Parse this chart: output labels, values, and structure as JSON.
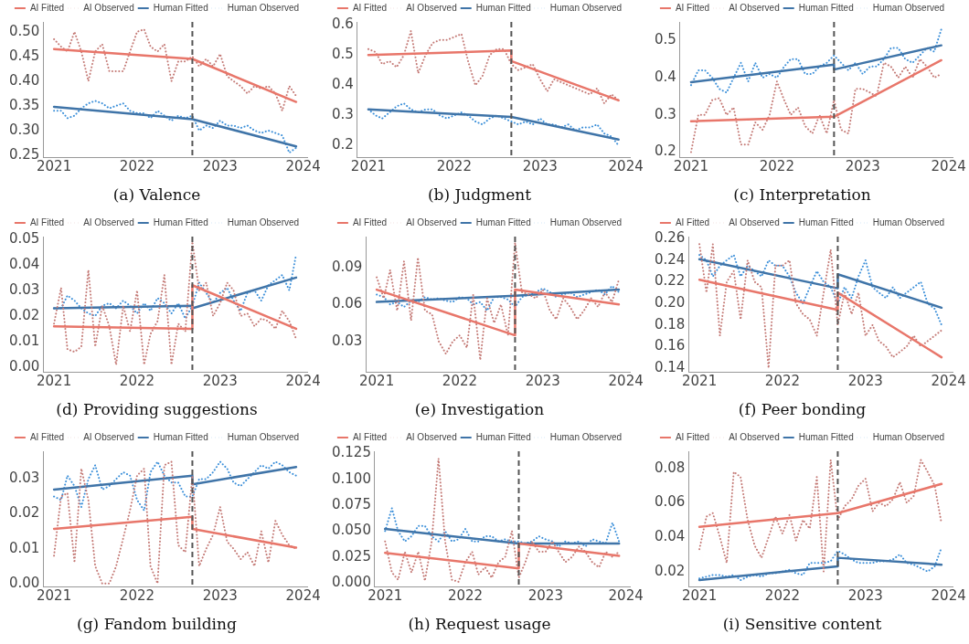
{
  "chart_data": [
    {
      "type": "line",
      "title": "(a) Valence",
      "legend": "top",
      "grid": false,
      "marker": "none",
      "xlim": [
        "2020-11-15",
        "2024-01-20"
      ],
      "xticks": [
        "2021",
        "2022",
        "2023",
        "2024"
      ],
      "ylim": [
        0.245,
        0.52
      ],
      "yticks": [
        {
          "value": 0.25,
          "label": "0.25"
        },
        {
          "value": 0.3,
          "label": "0.30"
        },
        {
          "value": 0.35,
          "label": "0.35"
        },
        {
          "value": 0.4,
          "label": "0.40"
        },
        {
          "value": 0.45,
          "label": "0.45"
        },
        {
          "value": 0.5,
          "label": "0.50"
        }
      ],
      "ref_lines": [
        {
          "axis": "x",
          "value": "2022-09",
          "color": "#555555",
          "line_style": "dashed"
        }
      ],
      "x": [
        "2021-01",
        "2021-02",
        "2021-03",
        "2021-04",
        "2021-05",
        "2021-06",
        "2021-07",
        "2021-08",
        "2021-09",
        "2021-10",
        "2021-11",
        "2021-12",
        "2022-01",
        "2022-02",
        "2022-03",
        "2022-04",
        "2022-05",
        "2022-06",
        "2022-07",
        "2022-08",
        "2022-09",
        "2022-10",
        "2022-11",
        "2022-12",
        "2023-01",
        "2023-02",
        "2023-03",
        "2023-04",
        "2023-05",
        "2023-06",
        "2023-07",
        "2023-08",
        "2023-09",
        "2023-10",
        "2023-11",
        "2023-12"
      ],
      "series": [
        {
          "name": "AI Fitted",
          "color": "#e8766a",
          "line_style": "solid",
          "x": [
            "2021-01",
            "2022-09",
            "2022-09",
            "2023-12"
          ],
          "values": [
            0.465,
            0.445,
            0.445,
            0.358
          ]
        },
        {
          "name": "AI Observed",
          "color": "#c47a76",
          "line_style": "dotted",
          "values": [
            0.485,
            0.47,
            0.46,
            0.5,
            0.46,
            0.4,
            0.46,
            0.475,
            0.42,
            0.42,
            0.42,
            0.46,
            0.5,
            0.505,
            0.47,
            0.46,
            0.475,
            0.4,
            0.44,
            0.44,
            0.45,
            0.43,
            0.445,
            0.43,
            0.455,
            0.41,
            0.4,
            0.39,
            0.375,
            0.39,
            0.385,
            0.39,
            0.375,
            0.34,
            0.39,
            0.37
          ]
        },
        {
          "name": "Human Fitted",
          "color": "#3f74a8",
          "line_style": "solid",
          "x": [
            "2021-01",
            "2022-09",
            "2022-09",
            "2023-12"
          ],
          "values": [
            0.348,
            0.323,
            0.323,
            0.268
          ]
        },
        {
          "name": "Human Observed",
          "color": "#3b8fd9",
          "line_style": "dotted",
          "values": [
            0.34,
            0.34,
            0.325,
            0.33,
            0.345,
            0.355,
            0.36,
            0.355,
            0.345,
            0.35,
            0.355,
            0.34,
            0.335,
            0.335,
            0.325,
            0.34,
            0.33,
            0.32,
            0.33,
            0.325,
            0.33,
            0.3,
            0.31,
            0.305,
            0.32,
            0.31,
            0.31,
            0.305,
            0.31,
            0.3,
            0.295,
            0.3,
            0.295,
            0.29,
            0.255,
            0.265
          ]
        }
      ]
    },
    {
      "type": "line",
      "title": "(b) Judgment",
      "legend": "top",
      "grid": false,
      "marker": "none",
      "xlim": [
        "2020-11-15",
        "2024-01-20"
      ],
      "xticks": [
        "2021",
        "2022",
        "2023",
        "2024"
      ],
      "ylim": [
        0.16,
        0.61
      ],
      "yticks": [
        {
          "value": 0.2,
          "label": "0.2"
        },
        {
          "value": 0.3,
          "label": "0.3"
        },
        {
          "value": 0.4,
          "label": "0.4"
        },
        {
          "value": 0.5,
          "label": "0.5"
        },
        {
          "value": 0.6,
          "label": "0.6"
        }
      ],
      "ref_lines": [
        {
          "axis": "x",
          "value": "2022-09",
          "color": "#555555",
          "line_style": "dashed"
        }
      ],
      "x": [
        "2021-01",
        "2021-02",
        "2021-03",
        "2021-04",
        "2021-05",
        "2021-06",
        "2021-07",
        "2021-08",
        "2021-09",
        "2021-10",
        "2021-11",
        "2021-12",
        "2022-01",
        "2022-02",
        "2022-03",
        "2022-04",
        "2022-05",
        "2022-06",
        "2022-07",
        "2022-08",
        "2022-09",
        "2022-10",
        "2022-11",
        "2022-12",
        "2023-01",
        "2023-02",
        "2023-03",
        "2023-04",
        "2023-05",
        "2023-06",
        "2023-07",
        "2023-08",
        "2023-09",
        "2023-10",
        "2023-11",
        "2023-12"
      ],
      "series": [
        {
          "name": "AI Fitted",
          "color": "#e8766a",
          "line_style": "solid",
          "x": [
            "2021-01",
            "2022-09",
            "2022-09",
            "2023-12"
          ],
          "values": [
            0.5,
            0.515,
            0.48,
            0.35
          ]
        },
        {
          "name": "AI Observed",
          "color": "#c47a76",
          "line_style": "dotted",
          "values": [
            0.52,
            0.51,
            0.47,
            0.48,
            0.46,
            0.5,
            0.58,
            0.44,
            0.5,
            0.54,
            0.55,
            0.55,
            0.56,
            0.57,
            0.48,
            0.4,
            0.43,
            0.5,
            0.52,
            0.52,
            0.47,
            0.45,
            0.46,
            0.47,
            0.42,
            0.38,
            0.42,
            0.41,
            0.4,
            0.39,
            0.38,
            0.37,
            0.39,
            0.34,
            0.37,
            0.35
          ]
        },
        {
          "name": "Human Fitted",
          "color": "#3f74a8",
          "line_style": "solid",
          "x": [
            "2021-01",
            "2022-09",
            "2022-09",
            "2023-12"
          ],
          "values": [
            0.32,
            0.295,
            0.295,
            0.22
          ]
        },
        {
          "name": "Human Observed",
          "color": "#3b8fd9",
          "line_style": "dotted",
          "values": [
            0.32,
            0.3,
            0.29,
            0.31,
            0.33,
            0.34,
            0.32,
            0.31,
            0.32,
            0.32,
            0.3,
            0.29,
            0.3,
            0.31,
            0.3,
            0.28,
            0.27,
            0.29,
            0.3,
            0.29,
            0.28,
            0.27,
            0.28,
            0.27,
            0.29,
            0.27,
            0.27,
            0.26,
            0.27,
            0.25,
            0.26,
            0.26,
            0.27,
            0.24,
            0.23,
            0.2
          ]
        }
      ]
    },
    {
      "type": "line",
      "title": "(c) Interpretation",
      "legend": "top",
      "grid": false,
      "marker": "none",
      "xlim": [
        "2020-11-15",
        "2024-01-20"
      ],
      "xticks": [
        "2021",
        "2022",
        "2023",
        "2024"
      ],
      "ylim": [
        0.185,
        0.55
      ],
      "yticks": [
        {
          "value": 0.2,
          "label": "0.2"
        },
        {
          "value": 0.3,
          "label": "0.3"
        },
        {
          "value": 0.4,
          "label": "0.4"
        },
        {
          "value": 0.5,
          "label": "0.5"
        }
      ],
      "ref_lines": [
        {
          "axis": "x",
          "value": "2022-09",
          "color": "#555555",
          "line_style": "dashed"
        }
      ],
      "x": [
        "2021-01",
        "2021-02",
        "2021-03",
        "2021-04",
        "2021-05",
        "2021-06",
        "2021-07",
        "2021-08",
        "2021-09",
        "2021-10",
        "2021-11",
        "2021-12",
        "2022-01",
        "2022-02",
        "2022-03",
        "2022-04",
        "2022-05",
        "2022-06",
        "2022-07",
        "2022-08",
        "2022-09",
        "2022-10",
        "2022-11",
        "2022-12",
        "2023-01",
        "2023-02",
        "2023-03",
        "2023-04",
        "2023-05",
        "2023-06",
        "2023-07",
        "2023-08",
        "2023-09",
        "2023-10",
        "2023-11",
        "2023-12"
      ],
      "series": [
        {
          "name": "AI Fitted",
          "color": "#e8766a",
          "line_style": "solid",
          "x": [
            "2021-01",
            "2022-09",
            "2022-09",
            "2023-12"
          ],
          "values": [
            0.283,
            0.295,
            0.295,
            0.447
          ]
        },
        {
          "name": "AI Observed",
          "color": "#c47a76",
          "line_style": "dotted",
          "values": [
            0.2,
            0.3,
            0.3,
            0.34,
            0.345,
            0.3,
            0.32,
            0.22,
            0.22,
            0.28,
            0.26,
            0.3,
            0.39,
            0.34,
            0.3,
            0.32,
            0.27,
            0.25,
            0.3,
            0.25,
            0.34,
            0.26,
            0.25,
            0.37,
            0.37,
            0.36,
            0.35,
            0.44,
            0.43,
            0.4,
            0.43,
            0.4,
            0.45,
            0.43,
            0.4,
            0.41
          ]
        },
        {
          "name": "Human Fitted",
          "color": "#3f74a8",
          "line_style": "solid",
          "x": [
            "2021-01",
            "2022-09",
            "2022-09",
            "2023-12"
          ],
          "values": [
            0.388,
            0.435,
            0.422,
            0.487
          ]
        },
        {
          "name": "Human Observed",
          "color": "#3b8fd9",
          "line_style": "dotted",
          "values": [
            0.38,
            0.42,
            0.42,
            0.4,
            0.37,
            0.36,
            0.4,
            0.44,
            0.39,
            0.44,
            0.4,
            0.41,
            0.4,
            0.43,
            0.45,
            0.45,
            0.41,
            0.41,
            0.43,
            0.44,
            0.46,
            0.44,
            0.42,
            0.44,
            0.41,
            0.43,
            0.43,
            0.45,
            0.48,
            0.48,
            0.45,
            0.44,
            0.46,
            0.48,
            0.47,
            0.53
          ]
        }
      ]
    },
    {
      "type": "line",
      "title": "(d) Providing suggestions",
      "legend": "top",
      "grid": false,
      "marker": "none",
      "xlim": [
        "2020-11-15",
        "2024-01-20"
      ],
      "xticks": [
        "2021",
        "2022",
        "2023",
        "2024"
      ],
      "ylim": [
        -0.002,
        0.051
      ],
      "yticks": [
        {
          "value": 0,
          "label": "0.00"
        },
        {
          "value": 0.01,
          "label": "0.01"
        },
        {
          "value": 0.02,
          "label": "0.02"
        },
        {
          "value": 0.03,
          "label": "0.03"
        },
        {
          "value": 0.04,
          "label": "0.04"
        },
        {
          "value": 0.05,
          "label": "0.05"
        }
      ],
      "ref_lines": [
        {
          "axis": "x",
          "value": "2022-09",
          "color": "#555555",
          "line_style": "dashed"
        }
      ],
      "x": [
        "2021-01",
        "2021-02",
        "2021-03",
        "2021-04",
        "2021-05",
        "2021-06",
        "2021-07",
        "2021-08",
        "2021-09",
        "2021-10",
        "2021-11",
        "2021-12",
        "2022-01",
        "2022-02",
        "2022-03",
        "2022-04",
        "2022-05",
        "2022-06",
        "2022-07",
        "2022-08",
        "2022-09",
        "2022-10",
        "2022-11",
        "2022-12",
        "2023-01",
        "2023-02",
        "2023-03",
        "2023-04",
        "2023-05",
        "2023-06",
        "2023-07",
        "2023-08",
        "2023-09",
        "2023-10",
        "2023-11",
        "2023-12"
      ],
      "series": [
        {
          "name": "AI Fitted",
          "color": "#e8766a",
          "line_style": "solid",
          "x": [
            "2021-01",
            "2022-09",
            "2022-09",
            "2023-12"
          ],
          "values": [
            0.016,
            0.015,
            0.032,
            0.015
          ]
        },
        {
          "name": "AI Observed",
          "color": "#c47a76",
          "line_style": "dotted",
          "values": [
            0.017,
            0.031,
            0.007,
            0.006,
            0.008,
            0.038,
            0.008,
            0.024,
            0.016,
            0.001,
            0.024,
            0.014,
            0.03,
            0.001,
            0.013,
            0.018,
            0.036,
            0.001,
            0.017,
            0.014,
            0.049,
            0.03,
            0.033,
            0.02,
            0.025,
            0.033,
            0.03,
            0.02,
            0.021,
            0.016,
            0.019,
            0.018,
            0.015,
            0.022,
            0.018,
            0.011
          ]
        },
        {
          "name": "Human Fitted",
          "color": "#3f74a8",
          "line_style": "solid",
          "x": [
            "2021-01",
            "2022-09",
            "2022-09",
            "2023-12"
          ],
          "values": [
            0.023,
            0.024,
            0.023,
            0.035
          ]
        },
        {
          "name": "Human Observed",
          "color": "#3b8fd9",
          "line_style": "dotted",
          "values": [
            0.023,
            0.023,
            0.028,
            0.026,
            0.023,
            0.021,
            0.02,
            0.024,
            0.025,
            0.023,
            0.026,
            0.024,
            0.021,
            0.025,
            0.022,
            0.027,
            0.025,
            0.021,
            0.025,
            0.019,
            0.024,
            0.033,
            0.029,
            0.025,
            0.029,
            0.031,
            0.026,
            0.022,
            0.029,
            0.03,
            0.026,
            0.032,
            0.034,
            0.036,
            0.03,
            0.044
          ]
        }
      ]
    },
    {
      "type": "line",
      "title": "(e) Investigation",
      "legend": "top",
      "grid": false,
      "marker": "none",
      "xlim": [
        "2020-11-15",
        "2024-01-20"
      ],
      "xticks": [
        "2021",
        "2022",
        "2023",
        "2024"
      ],
      "ylim": [
        0.005,
        0.115
      ],
      "yticks": [
        {
          "value": 0.03,
          "label": "0.03"
        },
        {
          "value": 0.06,
          "label": "0.06"
        },
        {
          "value": 0.09,
          "label": "0.09"
        }
      ],
      "ref_lines": [
        {
          "axis": "x",
          "value": "2022-09",
          "color": "#555555",
          "line_style": "dashed"
        }
      ],
      "x": [
        "2021-01",
        "2021-02",
        "2021-03",
        "2021-04",
        "2021-05",
        "2021-06",
        "2021-07",
        "2021-08",
        "2021-09",
        "2021-10",
        "2021-11",
        "2021-12",
        "2022-01",
        "2022-02",
        "2022-03",
        "2022-04",
        "2022-05",
        "2022-06",
        "2022-07",
        "2022-08",
        "2022-09",
        "2022-10",
        "2022-11",
        "2022-12",
        "2023-01",
        "2023-02",
        "2023-03",
        "2023-04",
        "2023-05",
        "2023-06",
        "2023-07",
        "2023-08",
        "2023-09",
        "2023-10",
        "2023-11",
        "2023-12"
      ],
      "series": [
        {
          "name": "AI Fitted",
          "color": "#e8766a",
          "line_style": "solid",
          "x": [
            "2021-01",
            "2022-09",
            "2022-09",
            "2023-12"
          ],
          "values": [
            0.072,
            0.035,
            0.072,
            0.06
          ]
        },
        {
          "name": "AI Observed",
          "color": "#c47a76",
          "line_style": "dotted",
          "values": [
            0.082,
            0.065,
            0.088,
            0.055,
            0.095,
            0.047,
            0.098,
            0.055,
            0.052,
            0.03,
            0.02,
            0.03,
            0.035,
            0.025,
            0.068,
            0.015,
            0.065,
            0.045,
            0.06,
            0.035,
            0.11,
            0.07,
            0.068,
            0.065,
            0.072,
            0.055,
            0.048,
            0.065,
            0.058,
            0.048,
            0.055,
            0.065,
            0.058,
            0.07,
            0.062,
            0.08
          ]
        },
        {
          "name": "Human Fitted",
          "color": "#3f74a8",
          "line_style": "solid",
          "x": [
            "2021-01",
            "2022-09",
            "2022-09",
            "2023-12"
          ],
          "values": [
            0.062,
            0.067,
            0.067,
            0.072
          ]
        },
        {
          "name": "Human Observed",
          "color": "#3b8fd9",
          "line_style": "dotted",
          "values": [
            0.068,
            0.066,
            0.06,
            0.062,
            0.058,
            0.063,
            0.062,
            0.066,
            0.064,
            0.065,
            0.063,
            0.062,
            0.066,
            0.065,
            0.06,
            0.062,
            0.055,
            0.066,
            0.066,
            0.064,
            0.058,
            0.066,
            0.068,
            0.07,
            0.073,
            0.07,
            0.066,
            0.068,
            0.07,
            0.066,
            0.068,
            0.07,
            0.072,
            0.068,
            0.075,
            0.07
          ]
        }
      ]
    },
    {
      "type": "line",
      "title": "(f) Peer bonding",
      "legend": "top",
      "grid": false,
      "marker": "none",
      "xlim": [
        "2020-11-15",
        "2024-01-20"
      ],
      "xticks": [
        "2021",
        "2022",
        "2023",
        "2024"
      ],
      "ylim": [
        0.136,
        0.262
      ],
      "yticks": [
        {
          "value": 0.14,
          "label": "0.14"
        },
        {
          "value": 0.16,
          "label": "0.16"
        },
        {
          "value": 0.18,
          "label": "0.18"
        },
        {
          "value": 0.2,
          "label": "0.20"
        },
        {
          "value": 0.22,
          "label": "0.22"
        },
        {
          "value": 0.24,
          "label": "0.24"
        },
        {
          "value": 0.26,
          "label": "0.26"
        }
      ],
      "ref_lines": [
        {
          "axis": "x",
          "value": "2022-09",
          "color": "#555555",
          "line_style": "dashed"
        }
      ],
      "x": [
        "2021-01",
        "2021-02",
        "2021-03",
        "2021-04",
        "2021-05",
        "2021-06",
        "2021-07",
        "2021-08",
        "2021-09",
        "2021-10",
        "2021-11",
        "2021-12",
        "2022-01",
        "2022-02",
        "2022-03",
        "2022-04",
        "2022-05",
        "2022-06",
        "2022-07",
        "2022-08",
        "2022-09",
        "2022-10",
        "2022-11",
        "2022-12",
        "2023-01",
        "2023-02",
        "2023-03",
        "2023-04",
        "2023-05",
        "2023-06",
        "2023-07",
        "2023-08",
        "2023-09",
        "2023-10",
        "2023-11",
        "2023-12"
      ],
      "series": [
        {
          "name": "AI Fitted",
          "color": "#e8766a",
          "line_style": "solid",
          "x": [
            "2021-01",
            "2022-09",
            "2022-09",
            "2023-12"
          ],
          "values": [
            0.222,
            0.194,
            0.21,
            0.15
          ]
        },
        {
          "name": "AI Observed",
          "color": "#c47a76",
          "line_style": "dotted",
          "values": [
            0.255,
            0.21,
            0.255,
            0.17,
            0.22,
            0.23,
            0.185,
            0.24,
            0.22,
            0.215,
            0.14,
            0.235,
            0.235,
            0.24,
            0.2,
            0.19,
            0.185,
            0.17,
            0.21,
            0.25,
            0.18,
            0.21,
            0.19,
            0.21,
            0.17,
            0.18,
            0.165,
            0.16,
            0.15,
            0.155,
            0.16,
            0.17,
            0.16,
            0.165,
            0.17,
            0.175
          ]
        },
        {
          "name": "Human Fitted",
          "color": "#3f74a8",
          "line_style": "solid",
          "x": [
            "2021-01",
            "2022-09",
            "2022-09",
            "2023-12"
          ],
          "values": [
            0.241,
            0.214,
            0.227,
            0.196
          ]
        },
        {
          "name": "Human Observed",
          "color": "#3b8fd9",
          "line_style": "dotted",
          "values": [
            0.245,
            0.24,
            0.225,
            0.235,
            0.24,
            0.245,
            0.225,
            0.235,
            0.23,
            0.225,
            0.24,
            0.235,
            0.235,
            0.225,
            0.21,
            0.2,
            0.215,
            0.23,
            0.22,
            0.215,
            0.2,
            0.215,
            0.205,
            0.225,
            0.24,
            0.215,
            0.21,
            0.205,
            0.215,
            0.205,
            0.21,
            0.215,
            0.22,
            0.2,
            0.195,
            0.18
          ]
        }
      ]
    },
    {
      "type": "line",
      "title": "(g) Fandom building",
      "legend": "top",
      "grid": false,
      "marker": "none",
      "xlim": [
        "2020-11-15",
        "2024-01-20"
      ],
      "xticks": [
        "2021",
        "2022",
        "2023",
        "2024"
      ],
      "ylim": [
        -0.001,
        0.038
      ],
      "yticks": [
        {
          "value": 0,
          "label": "0.00"
        },
        {
          "value": 0.01,
          "label": "0.01"
        },
        {
          "value": 0.02,
          "label": "0.02"
        },
        {
          "value": 0.03,
          "label": "0.03"
        }
      ],
      "ref_lines": [
        {
          "axis": "x",
          "value": "2022-09",
          "color": "#555555",
          "line_style": "dashed"
        }
      ],
      "x": [
        "2021-01",
        "2021-02",
        "2021-03",
        "2021-04",
        "2021-05",
        "2021-06",
        "2021-07",
        "2021-08",
        "2021-09",
        "2021-10",
        "2021-11",
        "2021-12",
        "2022-01",
        "2022-02",
        "2022-03",
        "2022-04",
        "2022-05",
        "2022-06",
        "2022-07",
        "2022-08",
        "2022-09",
        "2022-10",
        "2022-11",
        "2022-12",
        "2023-01",
        "2023-02",
        "2023-03",
        "2023-04",
        "2023-05",
        "2023-06",
        "2023-07",
        "2023-08",
        "2023-09",
        "2023-10",
        "2023-11",
        "2023-12"
      ],
      "series": [
        {
          "name": "AI Fitted",
          "color": "#e8766a",
          "line_style": "solid",
          "x": [
            "2021-01",
            "2022-09",
            "2022-09",
            "2023-12"
          ],
          "values": [
            0.0157,
            0.0192,
            0.0157,
            0.0103
          ]
        },
        {
          "name": "AI Observed",
          "color": "#c47a76",
          "line_style": "dotted",
          "values": [
            0.008,
            0.025,
            0.026,
            0.006,
            0.033,
            0.024,
            0.005,
            0.0,
            0.0,
            0.005,
            0.013,
            0.021,
            0.031,
            0.033,
            0.005,
            0.0,
            0.034,
            0.035,
            0.011,
            0.009,
            0.031,
            0.005,
            0.01,
            0.014,
            0.022,
            0.012,
            0.01,
            0.007,
            0.009,
            0.005,
            0.015,
            0.006,
            0.018,
            0.014,
            0.011,
            0.01
          ]
        },
        {
          "name": "Human Fitted",
          "color": "#3f74a8",
          "line_style": "solid",
          "x": [
            "2021-01",
            "2022-09",
            "2022-09",
            "2023-12"
          ],
          "values": [
            0.027,
            0.031,
            0.0285,
            0.0335
          ]
        },
        {
          "name": "Human Observed",
          "color": "#3b8fd9",
          "line_style": "dotted",
          "values": [
            0.025,
            0.024,
            0.031,
            0.028,
            0.022,
            0.03,
            0.034,
            0.027,
            0.028,
            0.03,
            0.032,
            0.031,
            0.024,
            0.021,
            0.032,
            0.035,
            0.031,
            0.029,
            0.029,
            0.025,
            0.025,
            0.03,
            0.03,
            0.032,
            0.035,
            0.033,
            0.029,
            0.028,
            0.03,
            0.032,
            0.034,
            0.033,
            0.035,
            0.034,
            0.032,
            0.031
          ]
        }
      ]
    },
    {
      "type": "line",
      "title": "(h) Request usage",
      "legend": "top",
      "grid": false,
      "marker": "none",
      "xlim": [
        "2020-11-15",
        "2024-01-20"
      ],
      "xticks": [
        "2021",
        "2022",
        "2023",
        "2024"
      ],
      "ylim": [
        -0.004,
        0.127
      ],
      "yticks": [
        {
          "value": 0,
          "label": "0.000"
        },
        {
          "value": 0.025,
          "label": "0.025"
        },
        {
          "value": 0.05,
          "label": "0.050"
        },
        {
          "value": 0.075,
          "label": "0.075"
        },
        {
          "value": 0.1,
          "label": "0.100"
        },
        {
          "value": 0.125,
          "label": "0.125"
        }
      ],
      "ref_lines": [
        {
          "axis": "x",
          "value": "2022-09",
          "color": "#555555",
          "line_style": "dashed"
        }
      ],
      "x": [
        "2021-01",
        "2021-02",
        "2021-03",
        "2021-04",
        "2021-05",
        "2021-06",
        "2021-07",
        "2021-08",
        "2021-09",
        "2021-10",
        "2021-11",
        "2021-12",
        "2022-01",
        "2022-02",
        "2022-03",
        "2022-04",
        "2022-05",
        "2022-06",
        "2022-07",
        "2022-08",
        "2022-09",
        "2022-10",
        "2022-11",
        "2022-12",
        "2023-01",
        "2023-02",
        "2023-03",
        "2023-04",
        "2023-05",
        "2023-06",
        "2023-07",
        "2023-08",
        "2023-09",
        "2023-10",
        "2023-11",
        "2023-12"
      ],
      "series": [
        {
          "name": "AI Fitted",
          "color": "#e8766a",
          "line_style": "solid",
          "x": [
            "2021-01",
            "2022-09",
            "2022-09",
            "2023-12"
          ],
          "values": [
            0.029,
            0.014,
            0.038,
            0.026
          ]
        },
        {
          "name": "AI Observed",
          "color": "#c47a76",
          "line_style": "dotted",
          "values": [
            0.04,
            0.01,
            0.003,
            0.03,
            0.01,
            0.03,
            0.002,
            0.04,
            0.12,
            0.04,
            0.003,
            0.001,
            0.02,
            0.03,
            0.008,
            0.015,
            0.005,
            0.02,
            0.025,
            0.05,
            0.005,
            0.02,
            0.04,
            0.03,
            0.03,
            0.04,
            0.03,
            0.02,
            0.025,
            0.035,
            0.03,
            0.02,
            0.015,
            0.03,
            0.025,
            0.03
          ]
        },
        {
          "name": "Human Fitted",
          "color": "#3f74a8",
          "line_style": "solid",
          "x": [
            "2021-01",
            "2022-09",
            "2022-09",
            "2023-12"
          ],
          "values": [
            0.052,
            0.038,
            0.038,
            0.038
          ]
        },
        {
          "name": "Human Observed",
          "color": "#3b8fd9",
          "line_style": "dotted",
          "values": [
            0.05,
            0.072,
            0.05,
            0.04,
            0.045,
            0.055,
            0.055,
            0.045,
            0.04,
            0.05,
            0.04,
            0.042,
            0.052,
            0.04,
            0.04,
            0.045,
            0.045,
            0.04,
            0.042,
            0.04,
            0.04,
            0.038,
            0.04,
            0.045,
            0.042,
            0.04,
            0.035,
            0.04,
            0.038,
            0.04,
            0.035,
            0.042,
            0.04,
            0.038,
            0.058,
            0.04
          ]
        }
      ]
    },
    {
      "type": "line",
      "title": "(i) Sensitive content",
      "legend": "top",
      "grid": false,
      "marker": "none",
      "xlim": [
        "2020-11-15",
        "2024-01-20"
      ],
      "xticks": [
        "2021",
        "2022",
        "2023",
        "2024"
      ],
      "ylim": [
        0.011,
        0.09
      ],
      "yticks": [
        {
          "value": 0.02,
          "label": "0.02"
        },
        {
          "value": 0.04,
          "label": "0.04"
        },
        {
          "value": 0.06,
          "label": "0.06"
        },
        {
          "value": 0.08,
          "label": "0.08"
        }
      ],
      "ref_lines": [
        {
          "axis": "x",
          "value": "2022-09",
          "color": "#555555",
          "line_style": "dashed"
        }
      ],
      "x": [
        "2021-01",
        "2021-02",
        "2021-03",
        "2021-04",
        "2021-05",
        "2021-06",
        "2021-07",
        "2021-08",
        "2021-09",
        "2021-10",
        "2021-11",
        "2021-12",
        "2022-01",
        "2022-02",
        "2022-03",
        "2022-04",
        "2022-05",
        "2022-06",
        "2022-07",
        "2022-08",
        "2022-09",
        "2022-10",
        "2022-11",
        "2022-12",
        "2023-01",
        "2023-02",
        "2023-03",
        "2023-04",
        "2023-05",
        "2023-06",
        "2023-07",
        "2023-08",
        "2023-09",
        "2023-10",
        "2023-11",
        "2023-12"
      ],
      "series": [
        {
          "name": "AI Fitted",
          "color": "#e8766a",
          "line_style": "solid",
          "x": [
            "2021-01",
            "2022-09",
            "2022-09",
            "2023-12"
          ],
          "values": [
            0.046,
            0.054,
            0.054,
            0.071
          ]
        },
        {
          "name": "AI Observed",
          "color": "#c47a76",
          "line_style": "dotted",
          "values": [
            0.033,
            0.052,
            0.054,
            0.04,
            0.025,
            0.078,
            0.075,
            0.05,
            0.035,
            0.028,
            0.04,
            0.052,
            0.042,
            0.053,
            0.038,
            0.05,
            0.045,
            0.075,
            0.02,
            0.085,
            0.05,
            0.058,
            0.062,
            0.07,
            0.074,
            0.055,
            0.06,
            0.058,
            0.062,
            0.072,
            0.06,
            0.064,
            0.085,
            0.078,
            0.07,
            0.048
          ]
        },
        {
          "name": "Human Fitted",
          "color": "#3f74a8",
          "line_style": "solid",
          "x": [
            "2021-01",
            "2022-09",
            "2022-09",
            "2023-12"
          ],
          "values": [
            0.015,
            0.023,
            0.028,
            0.024
          ]
        },
        {
          "name": "Human Observed",
          "color": "#3b8fd9",
          "line_style": "dotted",
          "values": [
            0.016,
            0.017,
            0.018,
            0.018,
            0.017,
            0.018,
            0.015,
            0.017,
            0.018,
            0.017,
            0.019,
            0.019,
            0.02,
            0.021,
            0.019,
            0.018,
            0.025,
            0.025,
            0.025,
            0.026,
            0.032,
            0.03,
            0.027,
            0.025,
            0.025,
            0.025,
            0.026,
            0.026,
            0.027,
            0.03,
            0.025,
            0.024,
            0.022,
            0.02,
            0.023,
            0.034
          ]
        }
      ]
    }
  ]
}
